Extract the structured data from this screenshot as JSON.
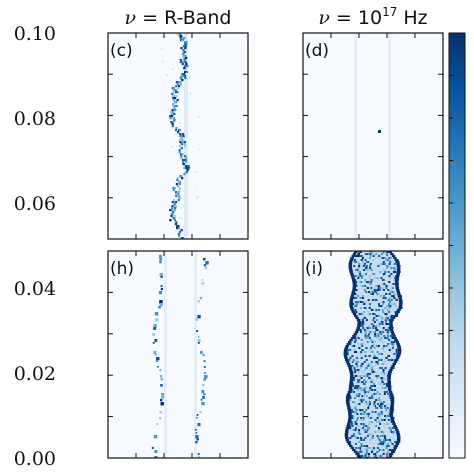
{
  "chart_data": {
    "type": "heatmap",
    "columns": [
      {
        "title_symbol": "ν",
        "title_rest": " = R-Band"
      },
      {
        "title_symbol": "ν",
        "title_rest": " = 10",
        "title_sup": "17",
        "title_tail": " Hz"
      }
    ],
    "panels": [
      {
        "letter": "(c)",
        "row": 0,
        "col": 0,
        "pattern": "twin-trail-sparse",
        "intensity": 0.55
      },
      {
        "letter": "(d)",
        "row": 0,
        "col": 1,
        "pattern": "faint-lines",
        "intensity": 0.08
      },
      {
        "letter": "(h)",
        "row": 1,
        "col": 0,
        "pattern": "double-trail-dots",
        "intensity": 0.5
      },
      {
        "letter": "(i)",
        "row": 1,
        "col": 1,
        "pattern": "wide-filament",
        "intensity": 1.0
      }
    ],
    "y_axis": {
      "ticks": [
        "0.00",
        "0.02",
        "0.04",
        "0.06",
        "0.08",
        "0.10"
      ],
      "range": [
        0.0,
        0.1
      ]
    },
    "colorbar": {
      "colormap": "Blues",
      "colors": [
        "#f7fbff",
        "#deebf7",
        "#c6dbef",
        "#9ecae1",
        "#6baed6",
        "#4292c6",
        "#2171b5",
        "#08519c",
        "#08306b"
      ]
    },
    "grid": false,
    "legend": "none"
  }
}
